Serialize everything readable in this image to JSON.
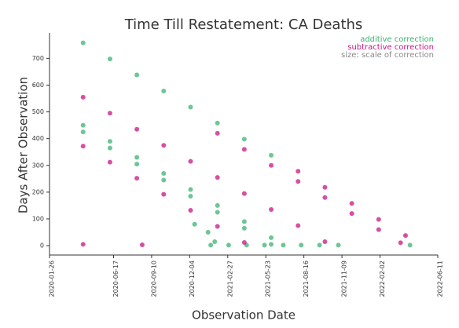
{
  "chart_data": {
    "type": "scatter",
    "title": "Time Till Restatement: CA Deaths",
    "x_label": "Observation Date",
    "y_label": "Days After Observation",
    "size_note": "size: scale of correction",
    "legend": "upper right",
    "xlim": [
      "2020-01-26",
      "2022-06-11"
    ],
    "xticks": [
      "2020-01-26",
      "2020-06-17",
      "2020-09-10",
      "2020-12-04",
      "2021-02-27",
      "2021-05-23",
      "2021-08-16",
      "2021-11-09",
      "2022-02-02",
      "2022-06-11"
    ],
    "ylim": [
      -35,
      795
    ],
    "yticks": [
      0,
      100,
      200,
      300,
      400,
      500,
      600,
      700
    ],
    "series": [
      {
        "name": "additive correction",
        "color": "#3cb371",
        "x": [
          "2020-04-10",
          "2020-06-09",
          "2020-08-08",
          "2020-10-07",
          "2020-12-06",
          "2021-02-04",
          "2021-04-05",
          "2021-06-04",
          "2020-04-10",
          "2020-06-09",
          "2020-08-08",
          "2020-10-07",
          "2020-12-06",
          "2021-02-04",
          "2021-04-05",
          "2021-06-04",
          "2020-04-10",
          "2020-06-09",
          "2020-08-08",
          "2020-10-07",
          "2020-12-06",
          "2021-02-04",
          "2021-04-05",
          "2021-06-04",
          "2020-12-15",
          "2021-01-14",
          "2021-01-29",
          "2021-01-20",
          "2021-03-01",
          "2021-04-10",
          "2021-05-20",
          "2021-07-01",
          "2021-08-10",
          "2021-09-20",
          "2021-11-01",
          "2022-04-10"
        ],
        "values": [
          758,
          698,
          638,
          578,
          518,
          458,
          398,
          338,
          450,
          390,
          330,
          270,
          210,
          150,
          90,
          30,
          425,
          365,
          305,
          245,
          185,
          125,
          65,
          5,
          80,
          50,
          15,
          2,
          2,
          2,
          2,
          2,
          2,
          2,
          2,
          2
        ]
      },
      {
        "name": "subtractive correction",
        "color": "#c71585",
        "x": [
          "2021-08-03",
          "2021-10-02",
          "2021-12-01",
          "2022-01-30",
          "2022-03-31",
          "2020-04-10",
          "2020-06-09",
          "2020-08-08",
          "2020-10-07",
          "2020-12-06",
          "2021-02-04",
          "2021-04-05",
          "2021-06-04",
          "2021-08-03",
          "2021-10-02",
          "2020-04-10",
          "2020-06-09",
          "2020-08-08",
          "2020-10-07",
          "2020-12-06",
          "2021-02-04",
          "2021-04-05",
          "2021-02-04",
          "2021-04-05",
          "2021-06-04",
          "2021-08-03",
          "2021-10-02",
          "2021-12-01",
          "2022-01-30",
          "2022-03-20",
          "2020-04-10",
          "2020-08-20"
        ],
        "values": [
          278,
          218,
          158,
          98,
          38,
          555,
          495,
          435,
          375,
          315,
          255,
          195,
          135,
          75,
          15,
          372,
          312,
          252,
          192,
          132,
          72,
          12,
          420,
          360,
          300,
          240,
          180,
          120,
          60,
          11,
          5,
          3
        ]
      }
    ]
  }
}
